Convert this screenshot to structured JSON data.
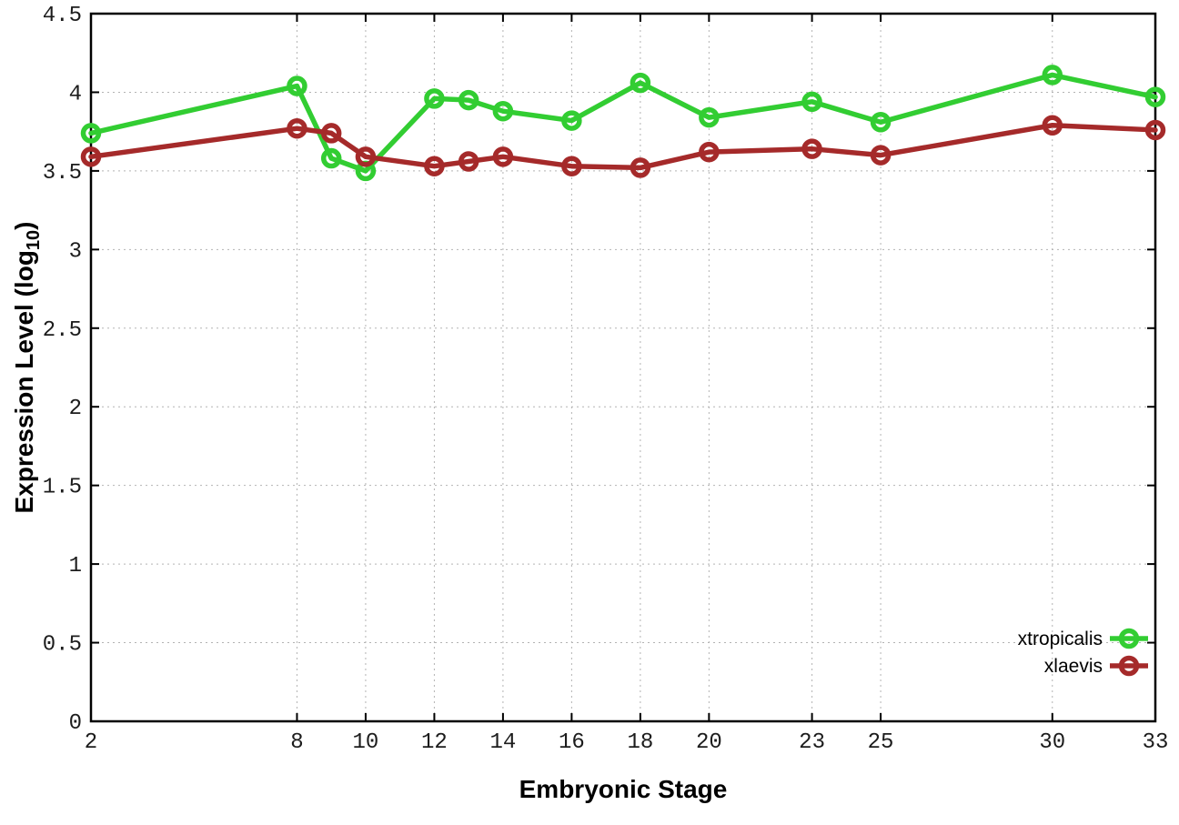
{
  "chart_data": {
    "type": "line",
    "title": "",
    "xlabel": "Embryonic Stage",
    "ylabel": "Expression Level (log10)",
    "ylabel_main": "Expression Level (log",
    "ylabel_sub": "10",
    "ylabel_end": ")",
    "x": [
      2,
      8,
      9,
      10,
      12,
      13,
      14,
      16,
      18,
      20,
      23,
      25,
      30,
      33
    ],
    "xticks": [
      2,
      8,
      10,
      12,
      14,
      16,
      18,
      20,
      23,
      25,
      30,
      33
    ],
    "yticks": [
      0,
      0.5,
      1,
      1.5,
      2,
      2.5,
      3,
      3.5,
      4,
      4.5
    ],
    "xlim": [
      2,
      33
    ],
    "ylim": [
      0,
      4.5
    ],
    "grid": true,
    "legend_position": "inside-bottom-right",
    "series": [
      {
        "name": "xtropicalis",
        "color": "#32cd32",
        "values": [
          3.74,
          4.04,
          3.58,
          3.5,
          3.96,
          3.95,
          3.88,
          3.82,
          4.06,
          3.84,
          3.94,
          3.81,
          4.11,
          3.97
        ]
      },
      {
        "name": "xlaevis",
        "color": "#a52a2a",
        "values": [
          3.59,
          3.77,
          3.74,
          3.59,
          3.53,
          3.56,
          3.59,
          3.53,
          3.52,
          3.62,
          3.64,
          3.6,
          3.79,
          3.76
        ]
      }
    ]
  }
}
